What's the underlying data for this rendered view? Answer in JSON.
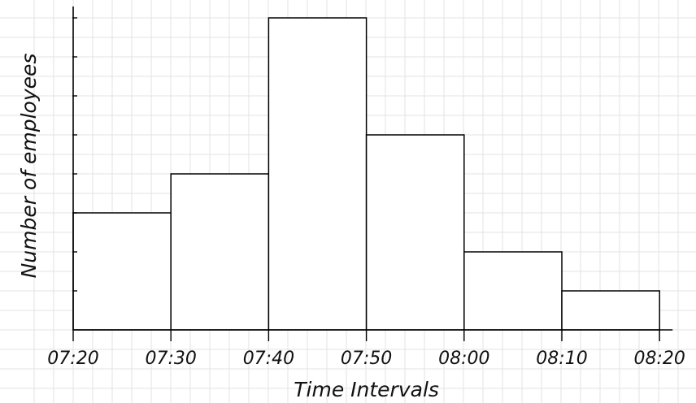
{
  "chart_data": {
    "type": "bar",
    "title": "",
    "xlabel": "Time Intervals",
    "ylabel": "Number of employees",
    "bin_edges": [
      "07:20",
      "07:30",
      "07:40",
      "07:50",
      "08:00",
      "08:10",
      "08:20"
    ],
    "values": [
      3,
      4,
      8,
      5,
      2,
      1
    ],
    "ylim": [
      0,
      8
    ],
    "y_tick_labels_shown": false,
    "grid": true
  }
}
